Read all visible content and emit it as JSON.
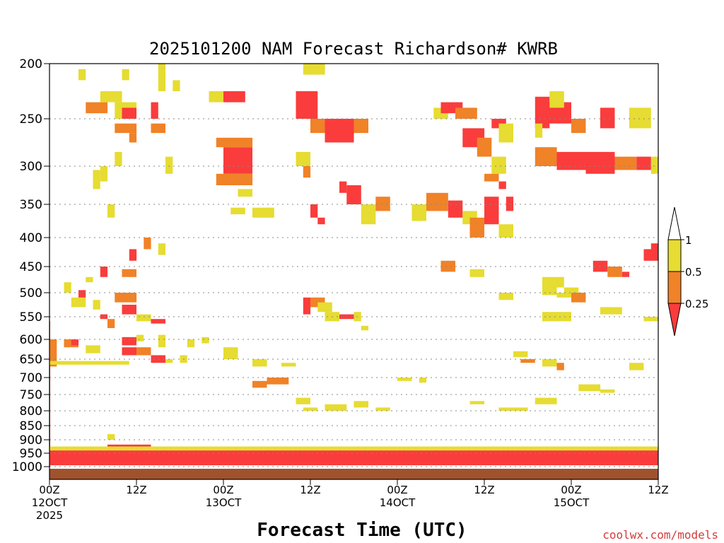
{
  "chart_data": {
    "type": "heatmap",
    "title": "2025101200 NAM Forecast Richardson# KWRB",
    "xlabel": "Forecast Time (UTC)",
    "ylabel": "",
    "credit": "coolwx.com/models",
    "x_range_hours": [
      0,
      84
    ],
    "y_range_hpa": [
      200,
      1000
    ],
    "y_ticks": [
      200,
      250,
      300,
      350,
      400,
      450,
      500,
      550,
      600,
      650,
      700,
      750,
      800,
      850,
      900,
      950,
      1000
    ],
    "x_ticks": [
      {
        "hour": 0,
        "lines": [
          "00Z",
          "12OCT",
          "2025"
        ]
      },
      {
        "hour": 12,
        "lines": [
          "12Z"
        ]
      },
      {
        "hour": 24,
        "lines": [
          "00Z",
          "13OCT"
        ]
      },
      {
        "hour": 36,
        "lines": [
          "12Z"
        ]
      },
      {
        "hour": 48,
        "lines": [
          "00Z",
          "14OCT"
        ]
      },
      {
        "hour": 60,
        "lines": [
          "12Z"
        ]
      },
      {
        "hour": 72,
        "lines": [
          "00Z",
          "15OCT"
        ]
      },
      {
        "hour": 84,
        "lines": [
          "12Z"
        ]
      }
    ],
    "legend": {
      "placement": "right",
      "labels": [
        "1",
        "0.5",
        "0.25"
      ],
      "bins": [
        {
          "range": "> 1",
          "color": "#ffffff"
        },
        {
          "range": "0.5 - 1",
          "color": "#e6dc32"
        },
        {
          "range": "0.25 - 0.5",
          "color": "#f08228"
        },
        {
          "range": "< 0.25",
          "color": "#fa3c3c"
        }
      ]
    },
    "colors": {
      "bin1": "#e6dc32",
      "bin2": "#f08228",
      "bin3": "#fa3c3c",
      "ground": "#a0522d"
    },
    "ground_level_hpa": 995,
    "cells": [
      [
        0,
        0,
        560,
        1000,
        3
      ],
      [
        0,
        1,
        600,
        670,
        2
      ],
      [
        0,
        11,
        655,
        665,
        1
      ],
      [
        0,
        70,
        935,
        965,
        3
      ],
      [
        0,
        84,
        960,
        990,
        3
      ],
      [
        4,
        5,
        205,
        215,
        1
      ],
      [
        5,
        8,
        235,
        245,
        2
      ],
      [
        7,
        10,
        225,
        235,
        1
      ],
      [
        8,
        9,
        880,
        900,
        1
      ],
      [
        8,
        14,
        918,
        935,
        3
      ],
      [
        9,
        12,
        235,
        250,
        1
      ],
      [
        9,
        12,
        255,
        265,
        2
      ],
      [
        10,
        12,
        240,
        250,
        3
      ],
      [
        10,
        11,
        205,
        215,
        1
      ],
      [
        9,
        10,
        285,
        300,
        1
      ],
      [
        7,
        8,
        300,
        320,
        1
      ],
      [
        6,
        7,
        305,
        330,
        1
      ],
      [
        8,
        9,
        350,
        370,
        1
      ],
      [
        14,
        15,
        235,
        250,
        3
      ],
      [
        15,
        16,
        200,
        225,
        1
      ],
      [
        14,
        16,
        255,
        265,
        2
      ],
      [
        16,
        17,
        290,
        310,
        1
      ],
      [
        17,
        18,
        215,
        225,
        1
      ],
      [
        11,
        12,
        265,
        275,
        2
      ],
      [
        2,
        4,
        600,
        620,
        2
      ],
      [
        3,
        4,
        600,
        615,
        3
      ],
      [
        5,
        7,
        615,
        635,
        1
      ],
      [
        10,
        12,
        595,
        615,
        3
      ],
      [
        10,
        12,
        620,
        640,
        3
      ],
      [
        12,
        14,
        620,
        640,
        2
      ],
      [
        14,
        16,
        640,
        660,
        3
      ],
      [
        16,
        17,
        650,
        660,
        1
      ],
      [
        18,
        19,
        640,
        660,
        1
      ],
      [
        9,
        12,
        500,
        520,
        2
      ],
      [
        10,
        12,
        525,
        545,
        3
      ],
      [
        12,
        14,
        545,
        560,
        1
      ],
      [
        14,
        16,
        555,
        565,
        3
      ],
      [
        3,
        5,
        510,
        530,
        1
      ],
      [
        4,
        5,
        495,
        510,
        3
      ],
      [
        6,
        7,
        515,
        535,
        1
      ],
      [
        7,
        8,
        545,
        555,
        3
      ],
      [
        8,
        9,
        555,
        575,
        2
      ],
      [
        15,
        16,
        590,
        620,
        1
      ],
      [
        12,
        13,
        590,
        605,
        1
      ],
      [
        19,
        20,
        600,
        620,
        1
      ],
      [
        21,
        22,
        595,
        610,
        1
      ],
      [
        7,
        8,
        450,
        470,
        3
      ],
      [
        10,
        12,
        455,
        470,
        2
      ],
      [
        11,
        12,
        420,
        440,
        3
      ],
      [
        13,
        14,
        400,
        420,
        2
      ],
      [
        15,
        16,
        410,
        430,
        1
      ],
      [
        5,
        6,
        470,
        480,
        1
      ],
      [
        2,
        3,
        480,
        500,
        1
      ],
      [
        24,
        28,
        280,
        310,
        3
      ],
      [
        23,
        28,
        270,
        280,
        2
      ],
      [
        23,
        28,
        310,
        325,
        2
      ],
      [
        24,
        27,
        225,
        235,
        3
      ],
      [
        22,
        24,
        225,
        235,
        1
      ],
      [
        26,
        28,
        330,
        340,
        1
      ],
      [
        25,
        27,
        355,
        365,
        1
      ],
      [
        28,
        31,
        355,
        370,
        1
      ],
      [
        34,
        36,
        285,
        300,
        1
      ],
      [
        36,
        37,
        350,
        370,
        3
      ],
      [
        37,
        38,
        370,
        380,
        3
      ],
      [
        35,
        36,
        300,
        315,
        2
      ],
      [
        35,
        38,
        190,
        210,
        1
      ],
      [
        34,
        37,
        225,
        250,
        3
      ],
      [
        38,
        42,
        250,
        275,
        3
      ],
      [
        36,
        38,
        250,
        265,
        2
      ],
      [
        42,
        44,
        250,
        265,
        2
      ],
      [
        40,
        41,
        320,
        335,
        3
      ],
      [
        41,
        43,
        325,
        350,
        3
      ],
      [
        43,
        45,
        350,
        380,
        1
      ],
      [
        45,
        47,
        340,
        360,
        2
      ],
      [
        35,
        36,
        510,
        545,
        3
      ],
      [
        36,
        38,
        510,
        530,
        2
      ],
      [
        37,
        39,
        520,
        540,
        1
      ],
      [
        38,
        40,
        540,
        560,
        1
      ],
      [
        40,
        42,
        545,
        555,
        3
      ],
      [
        42,
        43,
        540,
        560,
        1
      ],
      [
        43,
        44,
        570,
        580,
        1
      ],
      [
        32,
        34,
        660,
        670,
        1
      ],
      [
        28,
        30,
        650,
        670,
        1
      ],
      [
        24,
        26,
        620,
        650,
        1
      ],
      [
        28,
        30,
        710,
        730,
        2
      ],
      [
        30,
        33,
        700,
        720,
        2
      ],
      [
        34,
        36,
        760,
        780,
        1
      ],
      [
        35,
        37,
        790,
        800,
        1
      ],
      [
        38,
        41,
        780,
        800,
        1
      ],
      [
        42,
        44,
        770,
        790,
        1
      ],
      [
        45,
        47,
        790,
        800,
        1
      ],
      [
        48,
        50,
        700,
        710,
        1
      ],
      [
        51,
        52,
        700,
        715,
        1
      ],
      [
        53,
        55,
        240,
        250,
        1
      ],
      [
        54,
        57,
        235,
        245,
        3
      ],
      [
        56,
        59,
        240,
        250,
        2
      ],
      [
        57,
        60,
        260,
        280,
        3
      ],
      [
        59,
        61,
        270,
        290,
        2
      ],
      [
        61,
        63,
        290,
        310,
        1
      ],
      [
        60,
        62,
        310,
        320,
        2
      ],
      [
        62,
        63,
        320,
        330,
        3
      ],
      [
        63,
        64,
        340,
        360,
        3
      ],
      [
        61,
        63,
        250,
        260,
        3
      ],
      [
        62,
        64,
        255,
        275,
        1
      ],
      [
        50,
        52,
        350,
        375,
        1
      ],
      [
        52,
        55,
        335,
        360,
        2
      ],
      [
        55,
        57,
        345,
        370,
        3
      ],
      [
        57,
        59,
        360,
        380,
        1
      ],
      [
        58,
        60,
        370,
        400,
        2
      ],
      [
        60,
        62,
        340,
        380,
        3
      ],
      [
        62,
        64,
        380,
        400,
        1
      ],
      [
        54,
        56,
        440,
        460,
        2
      ],
      [
        58,
        60,
        455,
        470,
        1
      ],
      [
        62,
        64,
        500,
        515,
        1
      ],
      [
        68,
        71,
        470,
        490,
        1
      ],
      [
        68,
        70,
        480,
        505,
        1
      ],
      [
        70,
        72,
        500,
        510,
        1
      ],
      [
        67,
        69,
        230,
        260,
        3
      ],
      [
        68,
        72,
        235,
        255,
        3
      ],
      [
        72,
        74,
        250,
        265,
        2
      ],
      [
        69,
        71,
        225,
        240,
        1
      ],
      [
        67,
        68,
        255,
        270,
        1
      ],
      [
        67,
        70,
        280,
        300,
        2
      ],
      [
        70,
        74,
        285,
        305,
        3
      ],
      [
        74,
        78,
        285,
        310,
        3
      ],
      [
        78,
        81,
        290,
        305,
        2
      ],
      [
        81,
        83,
        290,
        305,
        3
      ],
      [
        83,
        84,
        290,
        310,
        1
      ],
      [
        76,
        78,
        240,
        260,
        3
      ],
      [
        80,
        83,
        240,
        260,
        1
      ],
      [
        75,
        77,
        440,
        460,
        3
      ],
      [
        77,
        79,
        450,
        470,
        2
      ],
      [
        79,
        80,
        460,
        470,
        3
      ],
      [
        83,
        84,
        410,
        430,
        3
      ],
      [
        82,
        84,
        420,
        440,
        3
      ],
      [
        71,
        73,
        490,
        500,
        1
      ],
      [
        72,
        74,
        500,
        520,
        2
      ],
      [
        76,
        79,
        530,
        545,
        1
      ],
      [
        82,
        84,
        550,
        560,
        1
      ],
      [
        80,
        82,
        660,
        680,
        1
      ],
      [
        73,
        76,
        720,
        740,
        1
      ],
      [
        76,
        78,
        735,
        745,
        1
      ],
      [
        67,
        70,
        760,
        780,
        1
      ],
      [
        62,
        66,
        790,
        800,
        1
      ],
      [
        58,
        60,
        770,
        780,
        1
      ],
      [
        68,
        72,
        540,
        560,
        1
      ],
      [
        64,
        66,
        630,
        645,
        1
      ],
      [
        65,
        67,
        650,
        660,
        2
      ],
      [
        68,
        70,
        650,
        670,
        1
      ],
      [
        70,
        71,
        660,
        680,
        2
      ],
      [
        0,
        84,
        925,
        955,
        1
      ],
      [
        0,
        84,
        940,
        995,
        3
      ]
    ]
  }
}
